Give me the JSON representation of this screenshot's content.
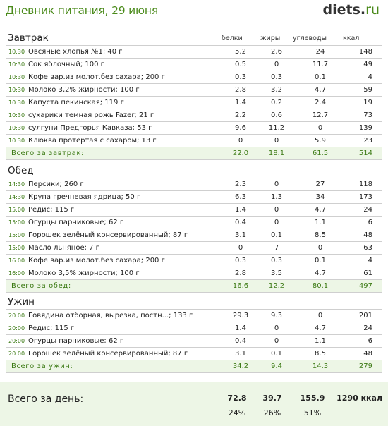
{
  "header": {
    "title": "Дневник питания, 29 июня",
    "logo_main": "diets",
    "logo_dot": ".",
    "logo_tld": "ru"
  },
  "columns": [
    "белки",
    "жиры",
    "углеводы",
    "ккал"
  ],
  "meals": [
    {
      "title": "Завтрак",
      "items": [
        {
          "time": "10:30",
          "name": "Овсяные хлопья №1; 40 г",
          "protein": "5.2",
          "fat": "2.6",
          "carbs": "24",
          "kcal": "148"
        },
        {
          "time": "10:30",
          "name": "Сок яблочный; 100 г",
          "protein": "0.5",
          "fat": "0",
          "carbs": "11.7",
          "kcal": "49"
        },
        {
          "time": "10:30",
          "name": "Кофе вар.из молот.без сахара; 200 г",
          "protein": "0.3",
          "fat": "0.3",
          "carbs": "0.1",
          "kcal": "4"
        },
        {
          "time": "10:30",
          "name": "Молоко 3,2% жирности; 100 г",
          "protein": "2.8",
          "fat": "3.2",
          "carbs": "4.7",
          "kcal": "59"
        },
        {
          "time": "10:30",
          "name": "Капуста пекинская; 119 г",
          "protein": "1.4",
          "fat": "0.2",
          "carbs": "2.4",
          "kcal": "19"
        },
        {
          "time": "10:30",
          "name": "сухарики темная рожь Fazer; 21 г",
          "protein": "2.2",
          "fat": "0.6",
          "carbs": "12.7",
          "kcal": "73"
        },
        {
          "time": "10:30",
          "name": "сулгуни Предгорья Кавказа; 53 г",
          "protein": "9.6",
          "fat": "11.2",
          "carbs": "0",
          "kcal": "139"
        },
        {
          "time": "10:30",
          "name": "Клюква протертая с сахаром; 13 г",
          "protein": "0",
          "fat": "0",
          "carbs": "5.9",
          "kcal": "23"
        }
      ],
      "total": {
        "label": "Всего за завтрак:",
        "protein": "22.0",
        "fat": "18.1",
        "carbs": "61.5",
        "kcal": "514"
      }
    },
    {
      "title": "Обед",
      "items": [
        {
          "time": "14:30",
          "name": "Персики; 260 г",
          "protein": "2.3",
          "fat": "0",
          "carbs": "27",
          "kcal": "118"
        },
        {
          "time": "14:30",
          "name": "Крупа гречневая ядрица; 50 г",
          "protein": "6.3",
          "fat": "1.3",
          "carbs": "34",
          "kcal": "173"
        },
        {
          "time": "15:00",
          "name": "Редис; 115 г",
          "protein": "1.4",
          "fat": "0",
          "carbs": "4.7",
          "kcal": "24"
        },
        {
          "time": "15:00",
          "name": "Огурцы парниковые; 62 г",
          "protein": "0.4",
          "fat": "0",
          "carbs": "1.1",
          "kcal": "6"
        },
        {
          "time": "15:00",
          "name": "Горошек зелёный консервированный; 87 г",
          "protein": "3.1",
          "fat": "0.1",
          "carbs": "8.5",
          "kcal": "48"
        },
        {
          "time": "15:00",
          "name": "Масло льняное; 7 г",
          "protein": "0",
          "fat": "7",
          "carbs": "0",
          "kcal": "63"
        },
        {
          "time": "16:00",
          "name": "Кофе вар.из молот.без сахара; 200 г",
          "protein": "0.3",
          "fat": "0.3",
          "carbs": "0.1",
          "kcal": "4"
        },
        {
          "time": "16:00",
          "name": "Молоко 3,5% жирности; 100 г",
          "protein": "2.8",
          "fat": "3.5",
          "carbs": "4.7",
          "kcal": "61"
        }
      ],
      "total": {
        "label": "Всего за обед:",
        "protein": "16.6",
        "fat": "12.2",
        "carbs": "80.1",
        "kcal": "497"
      }
    },
    {
      "title": "Ужин",
      "items": [
        {
          "time": "20:00",
          "name": "Говядина отборная, вырезка, постн...; 133 г",
          "protein": "29.3",
          "fat": "9.3",
          "carbs": "0",
          "kcal": "201"
        },
        {
          "time": "20:00",
          "name": "Редис; 115 г",
          "protein": "1.4",
          "fat": "0",
          "carbs": "4.7",
          "kcal": "24"
        },
        {
          "time": "20:00",
          "name": "Огурцы парниковые; 62 г",
          "protein": "0.4",
          "fat": "0",
          "carbs": "1.1",
          "kcal": "6"
        },
        {
          "time": "20:00",
          "name": "Горошек зелёный консервированный; 87 г",
          "protein": "3.1",
          "fat": "0.1",
          "carbs": "8.5",
          "kcal": "48"
        }
      ],
      "total": {
        "label": "Всего за ужин:",
        "protein": "34.2",
        "fat": "9.4",
        "carbs": "14.3",
        "kcal": "279"
      }
    }
  ],
  "day_total": {
    "label": "Всего за день:",
    "protein": "72.8",
    "fat": "39.7",
    "carbs": "155.9",
    "kcal": "1290 ккал",
    "protein_pct": "24%",
    "fat_pct": "26%",
    "carbs_pct": "51%"
  }
}
